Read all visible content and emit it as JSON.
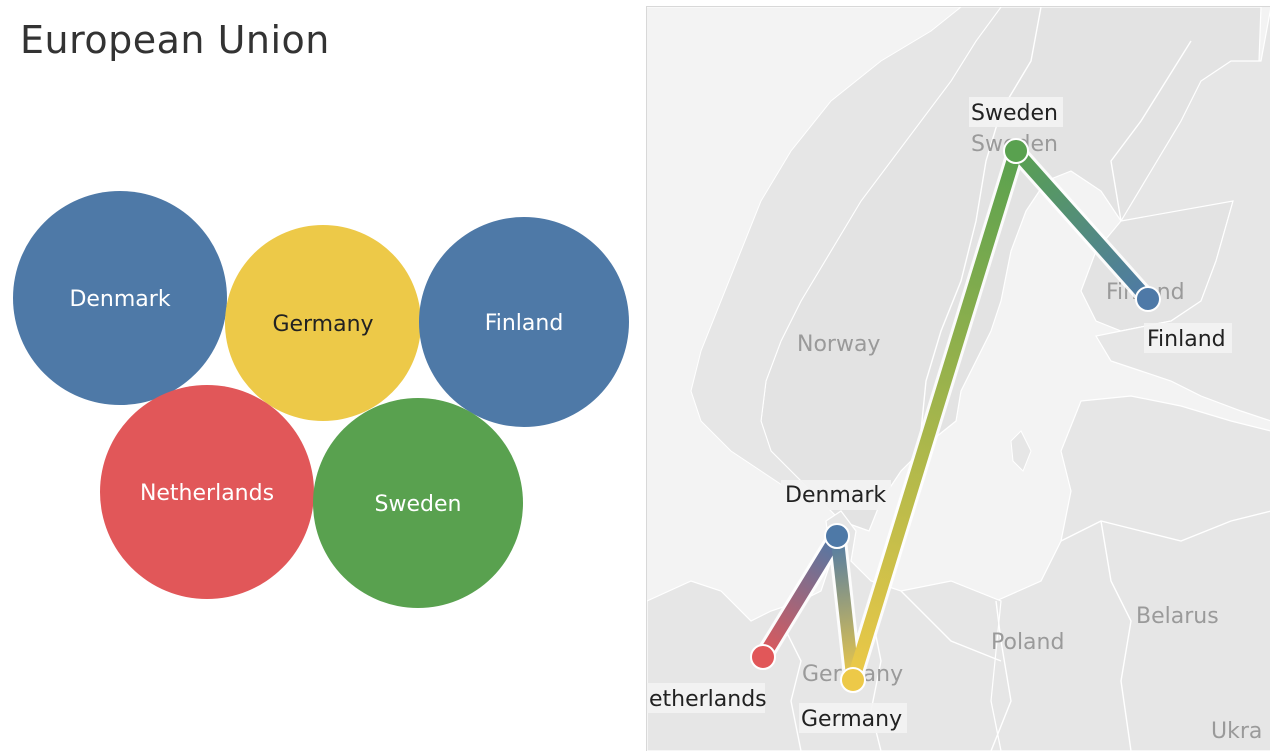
{
  "title": "European Union",
  "colors": {
    "denmark": "#4e79a7",
    "germany": "#edc948",
    "finland": "#4e79a7",
    "netherlands": "#e15759",
    "sweden": "#59a14f",
    "map_land": "#e6e6e6",
    "map_water": "#f3f3f3",
    "map_border": "#ffffff"
  },
  "bubbles": [
    {
      "label": "Denmark",
      "color": "#4e79a7",
      "text_color": "#ffffff"
    },
    {
      "label": "Germany",
      "color": "#edc948",
      "text_color": "#222222"
    },
    {
      "label": "Finland",
      "color": "#4e79a7",
      "text_color": "#ffffff"
    },
    {
      "label": "Netherlands",
      "color": "#e15759",
      "text_color": "#ffffff"
    },
    {
      "label": "Sweden",
      "color": "#59a14f",
      "text_color": "#ffffff"
    }
  ],
  "map": {
    "basemap_labels": [
      "Sweden",
      "Norway",
      "Finland",
      "Germany",
      "Poland",
      "Belarus",
      "Ukra"
    ],
    "route": [
      "Netherlands",
      "Denmark",
      "Germany",
      "Sweden",
      "Finland"
    ],
    "point_labels": [
      "Sweden",
      "Finland",
      "Denmark",
      "etherlands",
      "Germany"
    ]
  }
}
